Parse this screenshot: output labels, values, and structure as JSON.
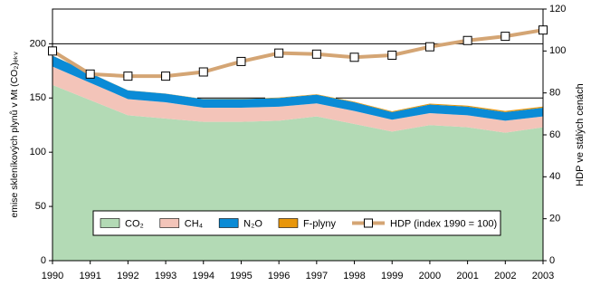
{
  "chart_data": {
    "type": "stacked_area_line",
    "y_label": "emise skleníkových plynů v Mt (CO₂)ₑₖᵥ",
    "y2_label": "HDP ve stálých cenách",
    "categories": [
      "1990",
      "1991",
      "1992",
      "1993",
      "1994",
      "1995",
      "1996",
      "1997",
      "1998",
      "1999",
      "2000",
      "2001",
      "2002",
      "2003"
    ],
    "series": [
      {
        "name": "CO₂",
        "color": "#b3dab5",
        "values": [
          162,
          148,
          134,
          131,
          128,
          128,
          129,
          133,
          126,
          119,
          125,
          123,
          118,
          123
        ]
      },
      {
        "name": "CH₄",
        "color": "#f3c4b9",
        "values": [
          17,
          16,
          15,
          15,
          13,
          13,
          13,
          12,
          12,
          11,
          11,
          11,
          11,
          10
        ]
      },
      {
        "name": "N₂O",
        "color": "#0a8bd6",
        "values": [
          10,
          9,
          8,
          8,
          8,
          8,
          8,
          8,
          8,
          7,
          8,
          8,
          8,
          8
        ]
      },
      {
        "name": "F-plyny",
        "color": "#e8960a",
        "values": [
          0.1,
          0.1,
          0.1,
          0.1,
          0.2,
          0.3,
          0.4,
          0.5,
          0.6,
          0.7,
          0.8,
          0.9,
          1.0,
          1.1
        ]
      },
      {
        "name": "HDP (index 1990 = 100)",
        "color": "#d4a574",
        "axis": "y2",
        "values": [
          100,
          89,
          88,
          88,
          90,
          95,
          99,
          98.5,
          97,
          98,
          102,
          105,
          107,
          110
        ]
      }
    ],
    "ylim": [
      0,
      232
    ],
    "yticks": [
      0,
      50,
      100,
      150,
      200
    ],
    "y2lim": [
      0,
      120
    ],
    "y2ticks": [
      0,
      20,
      40,
      60,
      80,
      100,
      120
    ],
    "grid": true
  }
}
